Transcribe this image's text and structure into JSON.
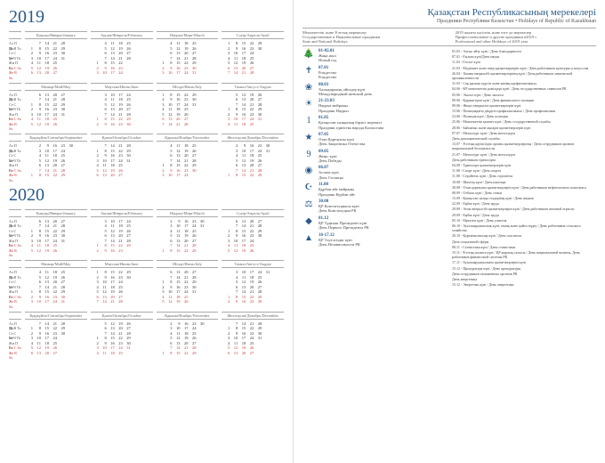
{
  "years": [
    "2019",
    "2020"
  ],
  "title_kz": "Қазақстан Республикасының мерекелері",
  "title_ru": "Праздники Республики Казахстан • Holidays of Republic of Kazakhstan",
  "sub_left_kz": "Мемлекеттік және Ұлттық мерекелер",
  "sub_left_ru": "Государственные и Национальные праздники",
  "sub_left_en": "State and National Holidays",
  "sub_right_kz": "2019 жылғы кәсіптік және өзге де мерекелер",
  "sub_right_ru": "Профессиональные и другие праздники в2019 г.",
  "sub_right_en": "Professional and other Holidays of 2019 year",
  "day_labels": [
    "Ал П Mo",
    "Дс В Tu",
    "Се С We",
    "Бе Ч Th",
    "Жм П Fr",
    "Сн С Sa",
    "Же В Su"
  ],
  "months_2019": [
    {
      "head": "Қаңтар/Январь/January",
      "start": 1,
      "days": 31
    },
    {
      "head": "Ақпан/Февраль/February",
      "start": 4,
      "days": 28
    },
    {
      "head": "Наурыз/Март/March",
      "start": 4,
      "days": 31
    },
    {
      "head": "Сәуір/Апрель/April",
      "start": 0,
      "days": 30
    },
    {
      "head": "Мамыр/Май/May",
      "start": 2,
      "days": 31
    },
    {
      "head": "Маусым/Июнь/June",
      "start": 5,
      "days": 30
    },
    {
      "head": "Шілде/Июль/July",
      "start": 0,
      "days": 31
    },
    {
      "head": "Тамыз/Август/August",
      "start": 3,
      "days": 31
    },
    {
      "head": "Қыркүйек/Сентябрь/September",
      "start": 6,
      "days": 30
    },
    {
      "head": "Қазан/Октябрь/October",
      "start": 1,
      "days": 31
    },
    {
      "head": "Қараша/Ноябрь/November",
      "start": 4,
      "days": 30
    },
    {
      "head": "Желтоқсан/Декабрь/December",
      "start": 6,
      "days": 31
    }
  ],
  "months_2020": [
    {
      "head": "Қаңтар/Январь/January",
      "start": 2,
      "days": 31
    },
    {
      "head": "Ақпан/Февраль/February",
      "start": 5,
      "days": 29
    },
    {
      "head": "Наурыз/Март/March",
      "start": 6,
      "days": 31
    },
    {
      "head": "Сәуір/Апрель/April",
      "start": 2,
      "days": 30
    },
    {
      "head": "Мамыр/Май/May",
      "start": 4,
      "days": 31
    },
    {
      "head": "Маусым/Июнь/June",
      "start": 0,
      "days": 30
    },
    {
      "head": "Шілде/Июль/July",
      "start": 2,
      "days": 31
    },
    {
      "head": "Тамыз/Август/August",
      "start": 5,
      "days": 31
    },
    {
      "head": "Қыркүйек/Сентябрь/September",
      "start": 1,
      "days": 30
    },
    {
      "head": "Қазан/Октябрь/October",
      "start": 3,
      "days": 31
    },
    {
      "head": "Қараша/Ноябрь/November",
      "start": 6,
      "days": 30
    },
    {
      "head": "Желтоқсан/Декабрь/December",
      "start": 1,
      "days": 31
    }
  ],
  "holidays": [
    {
      "icon": "🎄",
      "date": "01-02.01",
      "kz": "Жаңа жыл",
      "ru": "Новый год"
    },
    {
      "icon": "✝",
      "date": "07.01",
      "kz": "Рождество",
      "ru": "Рождество"
    },
    {
      "icon": "❀",
      "date": "08.03",
      "kz": "Халықаралық әйелдер күні",
      "ru": "Международный женский день"
    },
    {
      "icon": "☀",
      "date": "21-23.03",
      "kz": "Наурыз мейрамы",
      "ru": "Праздник Наурыз"
    },
    {
      "icon": "1",
      "date": "01.05",
      "kz": "Қазақстан халқының бірлігі мерекесі",
      "ru": "Праздник единства народа Казахстана"
    },
    {
      "icon": "★",
      "date": "07.05",
      "kz": "Отан Қорғаушы күні",
      "ru": "День Защитника Отечества"
    },
    {
      "icon": "9",
      "date": "09.05",
      "kz": "Жеңіс күні",
      "ru": "День Победы"
    },
    {
      "icon": "◉",
      "date": "06.07",
      "kz": "Астана күні",
      "ru": "День Столицы"
    },
    {
      "icon": "☪",
      "date": "11.08",
      "kz": "Құрбан айт мейрамы",
      "ru": "Праздник Курбан айт"
    },
    {
      "icon": "⚖",
      "date": "30.08",
      "kz": "ҚР Конституциясы күні",
      "ru": "День Конституции РК"
    },
    {
      "icon": "◆",
      "date": "01.12",
      "kz": "ҚР Тұңғыш Президенті күні",
      "ru": "День Первого Президента РК"
    },
    {
      "icon": "▲",
      "date": "16-17.12",
      "kz": "ҚР Тәуелсіздік күні",
      "ru": "День Независимости РК"
    }
  ],
  "prof": [
    "01.03 - Алғыс айту күні / День благодарности",
    "07.01 - Ғылым күні/День науки",
    "11.03 - Геолог күні",
    "21.03 - Мәдениет және өнер қызметкерлерін күні / День работников культуры и искусства",
    "26.04 - Химия өнеркәсібі қызметкерлерінің күні / День работников химической промышленности",
    "31.03 - Сақ қылыш күрсіп және жинақ профилактикасы",
    "04.06 - KP мемлекеттік рәміздері күні / День государственных символов РК",
    "05.06 - Эколог күні / День эколога",
    "09.06 - Қаржыгерші күні / День финансового полиция",
    "09.06 - Жеңіл өнеркәсіпі қызметкерлерін күні",
    "15.06 - Полициядағы деңделі профилактикасы / День профилактики",
    "23.06 - Полиция күні / День полиции",
    "25.06 - Мемлекеттік қызмет күні / День государственной службы",
    "28.06 - Байланыс және ақпарат қызметкерлерін күні",
    "07.07 - Металлург күні / День металлурга",
    "День дипломатической службы",
    "13.07 - Ұлттық қауіпсіздік органы қызметкерлерінің / День сотрудников органов национальной безопасности",
    "21.07 - Металлург күні / День металлурга",
    "День работников транспорта",
    "04.08 - Транспорт қызметкерлерін күні",
    "11.08 - Спорт күні / День спорта",
    "11.08 - Стройтель күні / День строителя",
    "18.08 - Шахтер күні / День шахтера",
    "28.08 - Отан қорғаушы қызметкерлерін күні / День работников нефтегазового комплекса",
    "08.09 - Отбасы күні / День семьи",
    "15.09 - Қазақстан халқы тілдерінің күні / День языков",
    "22.09 - Еңбек күні / День труда",
    "29.09 - Атом өнеркәсібі қызметкерлерін күні / День работников атомной отрасли",
    "29.09 - Еңбек күні / День труда",
    "05.10 - Мұғалім күні / День учителя",
    "06.10 - Ауылшаруашылық күні, тамақ және қайта өңдеу / День работников сельского хозяйства",
    "20.10 - Қорғанысшылар күні / День спасателя",
    "День социальной сферы",
    "08.11 - Статистика күні / День статистики",
    "15.11 - Ұлттық валюта күні / ҚР жарлық салысы / День национальной валюты, День работников финансовой системы РК",
    "17.11 - Ауылшаруашылығы қызметкерлерін күні",
    "15.12 - Прокуратура күні / День прокуратуры",
    "День сотрудников таможенных органов РК",
    "День энергетика",
    "15.12 - Энергетик күні / День энергетика"
  ]
}
